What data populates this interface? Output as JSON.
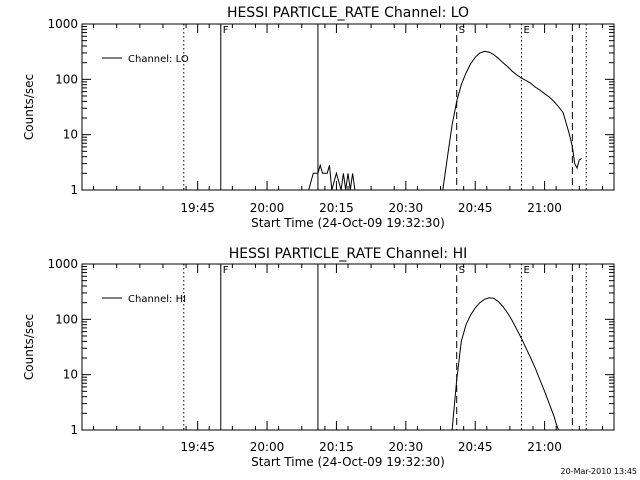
{
  "footer": {
    "timestamp": "20-Mar-2010 13:45"
  },
  "chart_data": [
    {
      "type": "line",
      "title": "HESSI PARTICLE_RATE Channel: LO",
      "xlabel": "Start Time (24-Oct-09 19:32:30)",
      "ylabel": "Counts/sec",
      "yscale": "log",
      "ylim": [
        1,
        1000
      ],
      "xlim_minutes": [
        -12.5,
        102.5
      ],
      "x_tick_labels": [
        "19:45",
        "20:00",
        "20:15",
        "20:30",
        "20:45",
        "21:00"
      ],
      "y_tick_labels": [
        "1",
        "10",
        "100",
        "1000"
      ],
      "legend": {
        "label": "Channel: LO",
        "position": "top-left"
      },
      "markers": [
        {
          "label": "F",
          "time": "19:50",
          "style": "solid"
        },
        {
          "label": "",
          "time": "19:42",
          "style": "dotted"
        },
        {
          "label": "",
          "time": "20:11",
          "style": "solid"
        },
        {
          "label": "S",
          "time": "20:41",
          "style": "dashed"
        },
        {
          "label": "E",
          "time": "20:55",
          "style": "dotted"
        },
        {
          "label": "",
          "time": "21:06",
          "style": "dashed"
        },
        {
          "label": "",
          "time": "21:09",
          "style": "dotted"
        }
      ],
      "series": [
        {
          "name": "Channel: LO",
          "segments": [
            {
              "x": [
                "20:09",
                "20:10",
                "20:11",
                "20:11:30",
                "20:12",
                "20:13",
                "20:13:30",
                "20:14",
                "20:15",
                "20:16",
                "20:16:30",
                "20:17",
                "20:17:30",
                "20:18",
                "20:18:30",
                "20:19",
                "20:20"
              ],
              "y": [
                1,
                2,
                2,
                2.8,
                2,
                2,
                2.8,
                1,
                2,
                1,
                2,
                1,
                2,
                1,
                2,
                1,
                1
              ]
            },
            {
              "x": [
                "20:38",
                "20:39",
                "20:40",
                "20:41",
                "20:42",
                "20:43",
                "20:44",
                "20:45",
                "20:46",
                "20:47",
                "20:48",
                "20:49",
                "20:50",
                "20:51",
                "20:52",
                "20:53",
                "20:54",
                "20:55",
                "20:56",
                "20:57",
                "20:58",
                "20:59",
                "21:00",
                "21:01",
                "21:02",
                "21:03",
                "21:04",
                "21:05",
                "21:05:30",
                "21:06",
                "21:06:30",
                "21:07",
                "21:07:30",
                "21:08"
              ],
              "y": [
                1,
                4,
                15,
                40,
                80,
                130,
                190,
                250,
                300,
                320,
                310,
                280,
                240,
                200,
                170,
                140,
                120,
                105,
                95,
                85,
                72,
                64,
                55,
                48,
                40,
                32,
                25,
                13,
                9,
                6,
                3,
                2.5,
                3.5,
                3.7
              ]
            }
          ]
        }
      ]
    },
    {
      "type": "line",
      "title": "HESSI PARTICLE_RATE Channel: HI",
      "xlabel": "Start Time (24-Oct-09 19:32:30)",
      "ylabel": "Counts/sec",
      "yscale": "log",
      "ylim": [
        1,
        1000
      ],
      "xlim_minutes": [
        -12.5,
        102.5
      ],
      "x_tick_labels": [
        "19:45",
        "20:00",
        "20:15",
        "20:30",
        "20:45",
        "21:00"
      ],
      "y_tick_labels": [
        "1",
        "10",
        "100",
        "1000"
      ],
      "legend": {
        "label": "Channel: HI",
        "position": "top-left"
      },
      "markers": [
        {
          "label": "F",
          "time": "19:50",
          "style": "solid"
        },
        {
          "label": "",
          "time": "19:42",
          "style": "dotted"
        },
        {
          "label": "",
          "time": "20:11",
          "style": "solid"
        },
        {
          "label": "S",
          "time": "20:41",
          "style": "dashed"
        },
        {
          "label": "E",
          "time": "20:55",
          "style": "dotted"
        },
        {
          "label": "",
          "time": "21:06",
          "style": "dashed"
        },
        {
          "label": "",
          "time": "21:09",
          "style": "dotted"
        }
      ],
      "series": [
        {
          "name": "Channel: HI",
          "segments": [
            {
              "x": [
                "20:40",
                "20:41",
                "20:42",
                "20:43",
                "20:44",
                "20:45",
                "20:46",
                "20:47",
                "20:48",
                "20:49",
                "20:50",
                "20:51",
                "20:52",
                "20:53",
                "20:54",
                "20:55",
                "20:56",
                "20:57",
                "20:58",
                "20:59",
                "21:00",
                "21:01",
                "21:02",
                "21:02:30",
                "21:03"
              ],
              "y": [
                1,
                8,
                40,
                80,
                120,
                160,
                200,
                230,
                245,
                240,
                210,
                170,
                130,
                95,
                65,
                45,
                30,
                20,
                13,
                8,
                5,
                3,
                1.8,
                1.3,
                1
              ]
            }
          ]
        }
      ]
    }
  ]
}
